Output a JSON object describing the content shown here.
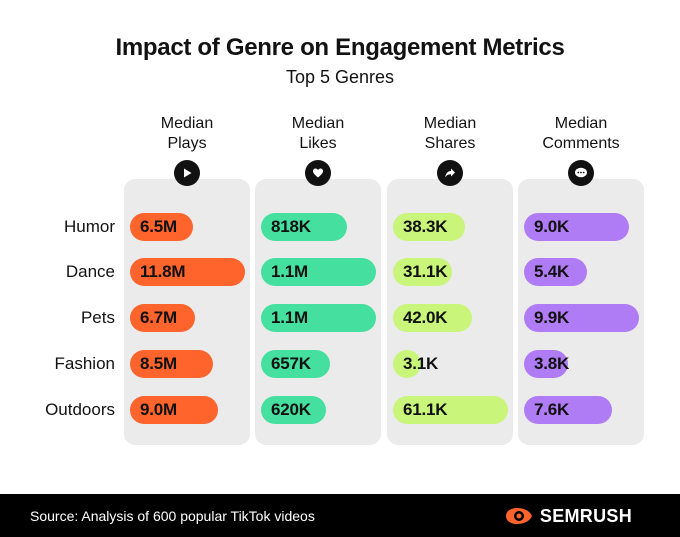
{
  "chart_data": {
    "type": "bar",
    "title": "Impact of Genre on Engagement Metrics",
    "subtitle": "Top 5 Genres",
    "categories": [
      "Humor",
      "Dance",
      "Pets",
      "Fashion",
      "Outdoors"
    ],
    "series": [
      {
        "name": "Median Plays",
        "values": [
          6.5,
          11.8,
          6.7,
          8.5,
          9.0
        ],
        "labels": [
          "6.5M",
          "11.8M",
          "6.7M",
          "8.5M",
          "9.0M"
        ],
        "unit": "M",
        "color": "#ff642d",
        "icon": "play-icon"
      },
      {
        "name": "Median Likes",
        "values": [
          818,
          1100,
          1100,
          657,
          620
        ],
        "labels": [
          "818K",
          "1.1M",
          "1.1M",
          "657K",
          "620K"
        ],
        "unit": "K",
        "color": "#45e0a0",
        "icon": "heart-icon"
      },
      {
        "name": "Median Shares",
        "values": [
          38.3,
          31.1,
          42.0,
          3.1,
          61.1
        ],
        "labels": [
          "38.3K",
          "31.1K",
          "42.0K",
          "3.1K",
          "61.1K"
        ],
        "unit": "K",
        "color": "#c8f57a",
        "icon": "share-icon"
      },
      {
        "name": "Median Comments",
        "values": [
          9.0,
          5.4,
          9.9,
          3.8,
          7.6
        ],
        "labels": [
          "9.0K",
          "5.4K",
          "9.9K",
          "3.8K",
          "7.6K"
        ],
        "unit": "K",
        "color": "#b07cf5",
        "icon": "comment-icon"
      }
    ],
    "header_lines": [
      [
        "Median",
        "Plays"
      ],
      [
        "Median",
        "Likes"
      ],
      [
        "Median",
        "Shares"
      ],
      [
        "Median",
        "Comments"
      ]
    ]
  },
  "footer": {
    "source": "Source: Analysis of 600 popular TikTok videos",
    "brand": "SEMRUSH",
    "brand_color": "#ff642d"
  }
}
